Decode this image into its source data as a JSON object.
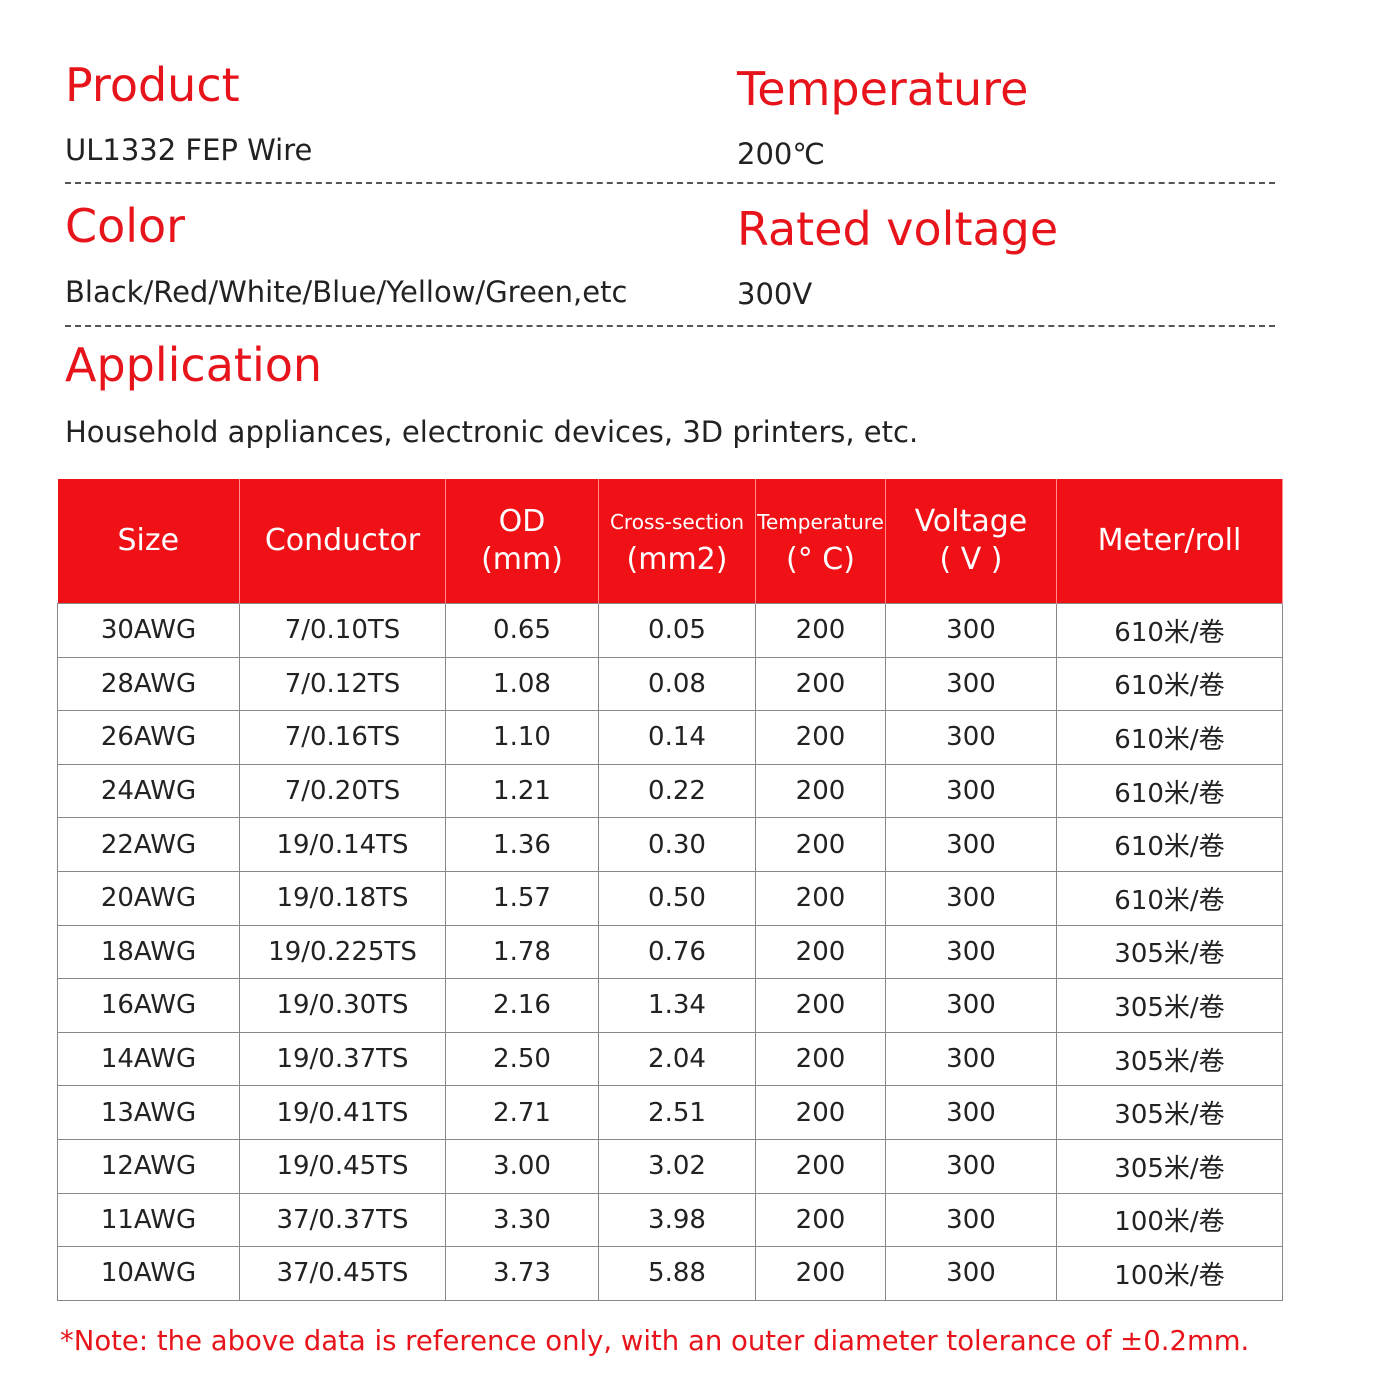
{
  "specs": [
    {
      "label": "Product",
      "value": "UL1332 FEP Wire"
    },
    {
      "label": "Temperature",
      "value": "200℃"
    },
    {
      "label": "Color",
      "value": "Black/Red/White/Blue/Yellow/Green,etc"
    },
    {
      "label": "Rated voltage",
      "value": "300V"
    },
    {
      "label": "Application",
      "value": "Household appliances, electronic devices, 3D printers, etc."
    }
  ],
  "table": {
    "headers": [
      [
        "Size"
      ],
      [
        "Conductor"
      ],
      [
        "OD",
        "(mm)"
      ],
      [
        "Cross-section",
        "(mm2)"
      ],
      [
        "Temperature",
        "(° C)"
      ],
      [
        "Voltage",
        "( V )"
      ],
      [
        "Meter/roll"
      ]
    ],
    "rows": [
      [
        "30AWG",
        "7/0.10TS",
        "0.65",
        "0.05",
        "200",
        "300",
        "610米/卷"
      ],
      [
        "28AWG",
        "7/0.12TS",
        "1.08",
        "0.08",
        "200",
        "300",
        "610米/卷"
      ],
      [
        "26AWG",
        "7/0.16TS",
        "1.10",
        "0.14",
        "200",
        "300",
        "610米/卷"
      ],
      [
        "24AWG",
        "7/0.20TS",
        "1.21",
        "0.22",
        "200",
        "300",
        "610米/卷"
      ],
      [
        "22AWG",
        "19/0.14TS",
        "1.36",
        "0.30",
        "200",
        "300",
        "610米/卷"
      ],
      [
        "20AWG",
        "19/0.18TS",
        "1.57",
        "0.50",
        "200",
        "300",
        "610米/卷"
      ],
      [
        "18AWG",
        "19/0.225TS",
        "1.78",
        "0.76",
        "200",
        "300",
        "305米/卷"
      ],
      [
        "16AWG",
        "19/0.30TS",
        "2.16",
        "1.34",
        "200",
        "300",
        "305米/卷"
      ],
      [
        "14AWG",
        "19/0.37TS",
        "2.50",
        "2.04",
        "200",
        "300",
        "305米/卷"
      ],
      [
        "13AWG",
        "19/0.41TS",
        "2.71",
        "2.51",
        "200",
        "300",
        "305米/卷"
      ],
      [
        "12AWG",
        "19/0.45TS",
        "3.00",
        "3.02",
        "200",
        "300",
        "305米/卷"
      ],
      [
        "11AWG",
        "37/0.37TS",
        "3.30",
        "3.98",
        "200",
        "300",
        "100米/卷"
      ],
      [
        "10AWG",
        "37/0.45TS",
        "3.73",
        "5.88",
        "200",
        "300",
        "100米/卷"
      ]
    ]
  },
  "note": "*Note: the above data is reference only, with an outer diameter tolerance of ±0.2mm."
}
